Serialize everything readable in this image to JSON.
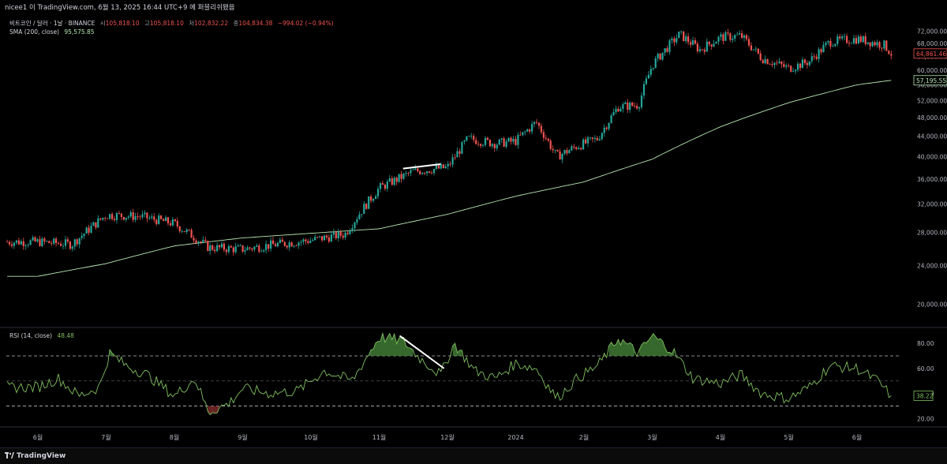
{
  "header": {
    "title_line": "nicee1 이 TradingView.com, 6월 13, 2025 16:44 UTC+9 에 퍼블리쉬됐음"
  },
  "legend": {
    "symbol": "비트코인 / 달러 · 1날 · BINANCE",
    "open_label": "시",
    "open": "105,818.10",
    "high_label": "고",
    "high": "105,818.10",
    "low_label": "저",
    "low": "102,832.22",
    "close_label": "종",
    "close": "104,834.38",
    "change": "−994.02 (−0.94%)",
    "sma_label": "SMA (200, close)",
    "sma_value": "95,575.85",
    "rsi_label": "RSI (14, close)",
    "rsi_value": "48.48"
  },
  "footer": {
    "brand": "TradingView"
  },
  "colors": {
    "up": "#26a69a",
    "down": "#ef5350",
    "sma": "#b5e8b0",
    "rsi": "#7fbf5f",
    "rsi_fill_ob": "#3f7a35",
    "rsi_fill_os": "#7a2a2a",
    "trendline": "#ffffff",
    "grid": "#1a1a1a"
  },
  "chart_data": [
    {
      "type": "candlestick",
      "title": "비트코인 / 달러 · 1날 · BINANCE",
      "y_scale": "log",
      "ylim": [
        18000,
        78000
      ],
      "y_ticks": [
        20000,
        24000,
        28000,
        32000,
        36000,
        40000,
        44000,
        48000,
        52000,
        56000,
        60000,
        64000,
        68000,
        72000
      ],
      "y_tick_labels": [
        "20,000.00",
        "24,000.00",
        "28,000.00",
        "32,000.00",
        "36,000.00",
        "40,000.00",
        "44,000.00",
        "48,000.00",
        "52,000.00",
        "56,000.00",
        "60,000.00",
        "64,000.00",
        "68,000.00",
        "72,000.00"
      ],
      "x_tick_labels": [
        "6월",
        "7월",
        "8월",
        "9월",
        "10월",
        "11월",
        "12월",
        "2024",
        "2월",
        "3월",
        "4월",
        "5월",
        "6월"
      ],
      "price_anchors": [
        {
          "month": 0,
          "close": 26800
        },
        {
          "month": 0.5,
          "close": 26500
        },
        {
          "month": 1,
          "close": 30400
        },
        {
          "month": 1.5,
          "close": 30200
        },
        {
          "month": 2,
          "close": 29200
        },
        {
          "month": 2.5,
          "close": 26100
        },
        {
          "month": 3,
          "close": 25900
        },
        {
          "month": 3.5,
          "close": 26500
        },
        {
          "month": 4,
          "close": 27000
        },
        {
          "month": 4.5,
          "close": 27800
        },
        {
          "month": 5,
          "close": 34500
        },
        {
          "month": 5.5,
          "close": 37300
        },
        {
          "month": 6,
          "close": 38000
        },
        {
          "month": 6.3,
          "close": 43500
        },
        {
          "month": 6.7,
          "close": 42500
        },
        {
          "month": 7,
          "close": 43000
        },
        {
          "month": 7.3,
          "close": 47000
        },
        {
          "month": 7.6,
          "close": 40000
        },
        {
          "month": 7.9,
          "close": 42000
        },
        {
          "month": 8.2,
          "close": 43500
        },
        {
          "month": 8.5,
          "close": 50500
        },
        {
          "month": 8.8,
          "close": 51000
        },
        {
          "month": 9,
          "close": 61500
        },
        {
          "month": 9.4,
          "close": 71000
        },
        {
          "month": 9.7,
          "close": 66000
        },
        {
          "month": 10,
          "close": 70000
        },
        {
          "month": 10.3,
          "close": 70500
        },
        {
          "month": 10.6,
          "close": 63500
        },
        {
          "month": 11,
          "close": 60500
        },
        {
          "month": 11.3,
          "close": 62500
        },
        {
          "month": 11.6,
          "close": 68500
        },
        {
          "month": 12,
          "close": 69500
        },
        {
          "month": 12.4,
          "close": 67500
        },
        {
          "month": 12.5,
          "close": 64861.46
        }
      ],
      "sma_200_anchors": [
        {
          "month": 0,
          "value": 22800
        },
        {
          "month": 1,
          "value": 24200
        },
        {
          "month": 2,
          "value": 26300
        },
        {
          "month": 3,
          "value": 27300
        },
        {
          "month": 4,
          "value": 27900
        },
        {
          "month": 5,
          "value": 28500
        },
        {
          "month": 6,
          "value": 30500
        },
        {
          "month": 7,
          "value": 33200
        },
        {
          "month": 8,
          "value": 35500
        },
        {
          "month": 9,
          "value": 39500
        },
        {
          "month": 10,
          "value": 46000
        },
        {
          "month": 11,
          "value": 51500
        },
        {
          "month": 12,
          "value": 56000
        },
        {
          "month": 12.5,
          "value": 57195.55
        }
      ],
      "last_price": 64861.46,
      "last_price_label": "64,861.46",
      "sma_last": 57195.55,
      "sma_last_label": "57,195.55",
      "trendline": {
        "from": {
          "month": 5.35,
          "price": 37800
        },
        "to": {
          "month": 5.9,
          "price": 38600
        }
      }
    },
    {
      "type": "line",
      "title": "RSI (14, close)",
      "ylim": [
        14,
        92
      ],
      "y_ticks": [
        20,
        40,
        60,
        80
      ],
      "y_tick_labels": [
        "20.00",
        "40.00",
        "60.00",
        "80.00"
      ],
      "levels": [
        70,
        50,
        30
      ],
      "rsi_anchors": [
        {
          "month": 0,
          "value": 45
        },
        {
          "month": 0.3,
          "value": 52
        },
        {
          "month": 0.6,
          "value": 38
        },
        {
          "month": 0.9,
          "value": 45
        },
        {
          "month": 1.05,
          "value": 72
        },
        {
          "month": 1.3,
          "value": 62
        },
        {
          "month": 1.6,
          "value": 55
        },
        {
          "month": 2,
          "value": 38
        },
        {
          "month": 2.3,
          "value": 52
        },
        {
          "month": 2.5,
          "value": 25
        },
        {
          "month": 2.8,
          "value": 32
        },
        {
          "month": 3,
          "value": 44
        },
        {
          "month": 3.4,
          "value": 40
        },
        {
          "month": 3.8,
          "value": 42
        },
        {
          "month": 4.2,
          "value": 58
        },
        {
          "month": 4.6,
          "value": 50
        },
        {
          "month": 5,
          "value": 85
        },
        {
          "month": 5.35,
          "value": 82
        },
        {
          "month": 5.6,
          "value": 68
        },
        {
          "month": 5.9,
          "value": 55
        },
        {
          "month": 6.1,
          "value": 80
        },
        {
          "month": 6.4,
          "value": 58
        },
        {
          "month": 6.7,
          "value": 52
        },
        {
          "month": 7,
          "value": 64
        },
        {
          "month": 7.3,
          "value": 60
        },
        {
          "month": 7.6,
          "value": 36
        },
        {
          "month": 7.9,
          "value": 52
        },
        {
          "month": 8.2,
          "value": 62
        },
        {
          "month": 8.5,
          "value": 84
        },
        {
          "month": 8.8,
          "value": 72
        },
        {
          "month": 9,
          "value": 86
        },
        {
          "month": 9.3,
          "value": 74
        },
        {
          "month": 9.6,
          "value": 52
        },
        {
          "month": 10,
          "value": 48
        },
        {
          "month": 10.3,
          "value": 55
        },
        {
          "month": 10.6,
          "value": 40
        },
        {
          "month": 11,
          "value": 36
        },
        {
          "month": 11.3,
          "value": 45
        },
        {
          "month": 11.6,
          "value": 62
        },
        {
          "month": 12,
          "value": 60
        },
        {
          "month": 12.3,
          "value": 50
        },
        {
          "month": 12.5,
          "value": 38.22
        }
      ],
      "last_value": 38.22,
      "last_value_label": "38.22",
      "trendline": {
        "from": {
          "month": 5.3,
          "value": 86
        },
        "to": {
          "month": 5.95,
          "value": 60
        }
      }
    }
  ]
}
